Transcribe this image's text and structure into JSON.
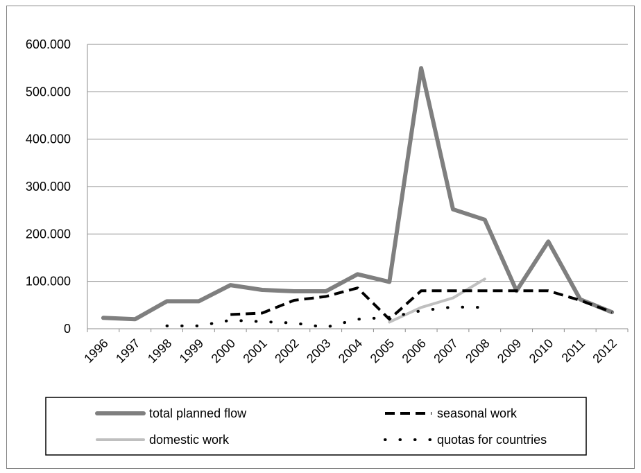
{
  "chart_data": {
    "type": "line",
    "title": "",
    "xlabel": "",
    "ylabel": "",
    "categories": [
      "1996",
      "1997",
      "1998",
      "1999",
      "2000",
      "2001",
      "2002",
      "2003",
      "2004",
      "2005",
      "2006",
      "2007",
      "2008",
      "2009",
      "2010",
      "2011",
      "2012"
    ],
    "ylim": [
      0,
      600000
    ],
    "yticks": [
      {
        "value": 0,
        "label": "0"
      },
      {
        "value": 100000,
        "label": "100.000"
      },
      {
        "value": 200000,
        "label": "200.000"
      },
      {
        "value": 300000,
        "label": "300.000"
      },
      {
        "value": 400000,
        "label": "400.000"
      },
      {
        "value": 500000,
        "label": "500.000"
      },
      {
        "value": 600000,
        "label": "600.000"
      }
    ],
    "grid": true,
    "legend_position": "bottom",
    "series": [
      {
        "name": "total planned flow",
        "color": "#7f7f7f",
        "style": "solid-thick",
        "values": [
          23000,
          20000,
          58000,
          58000,
          92000,
          82000,
          79000,
          79000,
          115000,
          99000,
          550000,
          252000,
          230000,
          80000,
          184000,
          62000,
          35000
        ]
      },
      {
        "name": "seasonal work",
        "color": "#000000",
        "style": "dashed",
        "values": [
          null,
          null,
          null,
          null,
          30000,
          33000,
          60000,
          68000,
          86000,
          20000,
          80000,
          80000,
          80000,
          80000,
          80000,
          60000,
          35000
        ]
      },
      {
        "name": "domestic work",
        "color": "#bfbfbf",
        "style": "solid",
        "values": [
          null,
          null,
          null,
          null,
          null,
          null,
          null,
          null,
          null,
          14000,
          45000,
          65000,
          105000,
          null,
          null,
          null,
          null
        ]
      },
      {
        "name": "quotas for countries",
        "color": "#000000",
        "style": "dotted",
        "values": [
          null,
          null,
          6000,
          6000,
          18000,
          15000,
          12000,
          3000,
          20000,
          24000,
          38000,
          46000,
          45000,
          null,
          null,
          null,
          null
        ]
      }
    ]
  }
}
